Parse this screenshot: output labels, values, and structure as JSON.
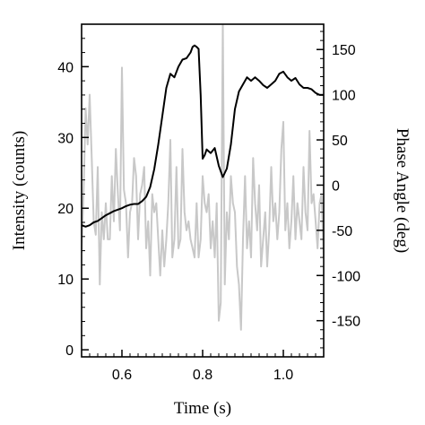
{
  "chart_data": {
    "type": "line",
    "xlabel": "Time (s)",
    "ylabel_left": "Intensity (counts)",
    "ylabel_right": "Phase Angle (deg)",
    "xlim": [
      0.5,
      1.1
    ],
    "ylim_left": [
      -1,
      46
    ],
    "ylim_right": [
      -190,
      178
    ],
    "x_ticks": [
      0.6,
      0.8,
      1.0
    ],
    "x_tick_labels": [
      "0.6",
      "0.8",
      "1.0"
    ],
    "y_left_ticks": [
      0,
      10,
      20,
      30,
      40
    ],
    "y_left_tick_labels": [
      "0",
      "10",
      "20",
      "30",
      "40"
    ],
    "y_right_ticks": [
      -150,
      -100,
      -50,
      0,
      50,
      100,
      150
    ],
    "y_right_tick_labels": [
      "-150",
      "-100",
      "-50",
      "0",
      "50",
      "100",
      "150"
    ],
    "grid": false,
    "colors": {
      "intensity": "#000000",
      "phase": "#c8c8c8",
      "axes": "#000000"
    },
    "series": [
      {
        "axis": "left",
        "x": [
          0.5,
          0.51,
          0.52,
          0.53,
          0.54,
          0.55,
          0.56,
          0.57,
          0.58,
          0.59,
          0.6,
          0.61,
          0.62,
          0.63,
          0.64,
          0.65,
          0.66,
          0.67,
          0.68,
          0.69,
          0.7,
          0.71,
          0.72,
          0.73,
          0.74,
          0.75,
          0.76,
          0.77,
          0.775,
          0.78,
          0.785,
          0.79,
          0.795,
          0.8,
          0.805,
          0.81,
          0.82,
          0.83,
          0.84,
          0.85,
          0.86,
          0.87,
          0.88,
          0.89,
          0.9,
          0.91,
          0.92,
          0.93,
          0.94,
          0.95,
          0.96,
          0.97,
          0.98,
          0.99,
          1.0,
          1.01,
          1.02,
          1.03,
          1.04,
          1.05,
          1.06,
          1.07,
          1.08,
          1.09,
          1.1
        ],
        "values": [
          17.6,
          17.4,
          17.6,
          18.0,
          18.2,
          18.6,
          19.0,
          19.3,
          19.6,
          19.8,
          20.0,
          20.3,
          20.5,
          20.6,
          20.6,
          21.0,
          21.6,
          23.0,
          25.5,
          29.0,
          33.0,
          37.0,
          39.0,
          38.5,
          40.0,
          41.0,
          41.2,
          42.0,
          42.8,
          43.0,
          42.8,
          42.5,
          36.0,
          27.0,
          27.5,
          28.3,
          27.8,
          28.5,
          26.0,
          24.4,
          25.6,
          29.0,
          34.0,
          36.5,
          37.5,
          38.5,
          38.0,
          38.5,
          38.0,
          37.4,
          37.0,
          37.5,
          38.0,
          39.0,
          39.3,
          38.5,
          38.0,
          38.4,
          37.5,
          37.0,
          37.0,
          36.8,
          36.3,
          36.0,
          36.0
        ]
      },
      {
        "axis": "right",
        "x": [
          0.5,
          0.505,
          0.51,
          0.515,
          0.52,
          0.525,
          0.53,
          0.535,
          0.54,
          0.545,
          0.55,
          0.555,
          0.56,
          0.565,
          0.57,
          0.575,
          0.58,
          0.585,
          0.59,
          0.595,
          0.6,
          0.605,
          0.61,
          0.615,
          0.62,
          0.625,
          0.63,
          0.635,
          0.64,
          0.645,
          0.65,
          0.655,
          0.66,
          0.665,
          0.67,
          0.675,
          0.68,
          0.685,
          0.69,
          0.695,
          0.7,
          0.705,
          0.71,
          0.715,
          0.72,
          0.725,
          0.73,
          0.735,
          0.74,
          0.745,
          0.75,
          0.755,
          0.76,
          0.765,
          0.77,
          0.775,
          0.78,
          0.785,
          0.79,
          0.795,
          0.8,
          0.805,
          0.81,
          0.815,
          0.82,
          0.825,
          0.83,
          0.835,
          0.84,
          0.845,
          0.85,
          0.855,
          0.86,
          0.865,
          0.87,
          0.875,
          0.88,
          0.885,
          0.89,
          0.895,
          0.9,
          0.905,
          0.91,
          0.915,
          0.92,
          0.925,
          0.93,
          0.935,
          0.94,
          0.945,
          0.95,
          0.955,
          0.96,
          0.965,
          0.97,
          0.975,
          0.98,
          0.985,
          0.99,
          0.995,
          1.0,
          1.005,
          1.01,
          1.015,
          1.02,
          1.025,
          1.03,
          1.035,
          1.04,
          1.045,
          1.05,
          1.055,
          1.06,
          1.065,
          1.07,
          1.075,
          1.08,
          1.085,
          1.09,
          1.095,
          1.1
        ],
        "values": [
          -75,
          -5,
          85,
          45,
          100,
          30,
          -40,
          -55,
          20,
          -110,
          -30,
          -60,
          -20,
          -60,
          -60,
          10,
          -40,
          40,
          -10,
          -50,
          130,
          -5,
          -20,
          -80,
          -30,
          -20,
          30,
          10,
          -60,
          -10,
          0,
          20,
          -70,
          -40,
          -100,
          -10,
          -30,
          -20,
          -60,
          -100,
          -50,
          -90,
          -60,
          -20,
          50,
          -80,
          -60,
          20,
          -70,
          -60,
          40,
          -30,
          -50,
          -40,
          -60,
          -70,
          -80,
          -20,
          -80,
          -60,
          10,
          -20,
          -30,
          -10,
          -70,
          -40,
          -80,
          -20,
          -150,
          -130,
          178,
          -110,
          -30,
          -60,
          10,
          -20,
          -30,
          -90,
          -110,
          -160,
          -60,
          10,
          -70,
          -40,
          -80,
          30,
          -20,
          -50,
          0,
          -90,
          -60,
          -30,
          -90,
          -50,
          20,
          -40,
          -20,
          -60,
          -30,
          40,
          70,
          -50,
          -20,
          -70,
          -40,
          10,
          -60,
          -20,
          -40,
          -60,
          20,
          -30,
          -50,
          60,
          -20,
          -10,
          -40,
          -70,
          -20,
          -10,
          -80
        ]
      }
    ]
  }
}
